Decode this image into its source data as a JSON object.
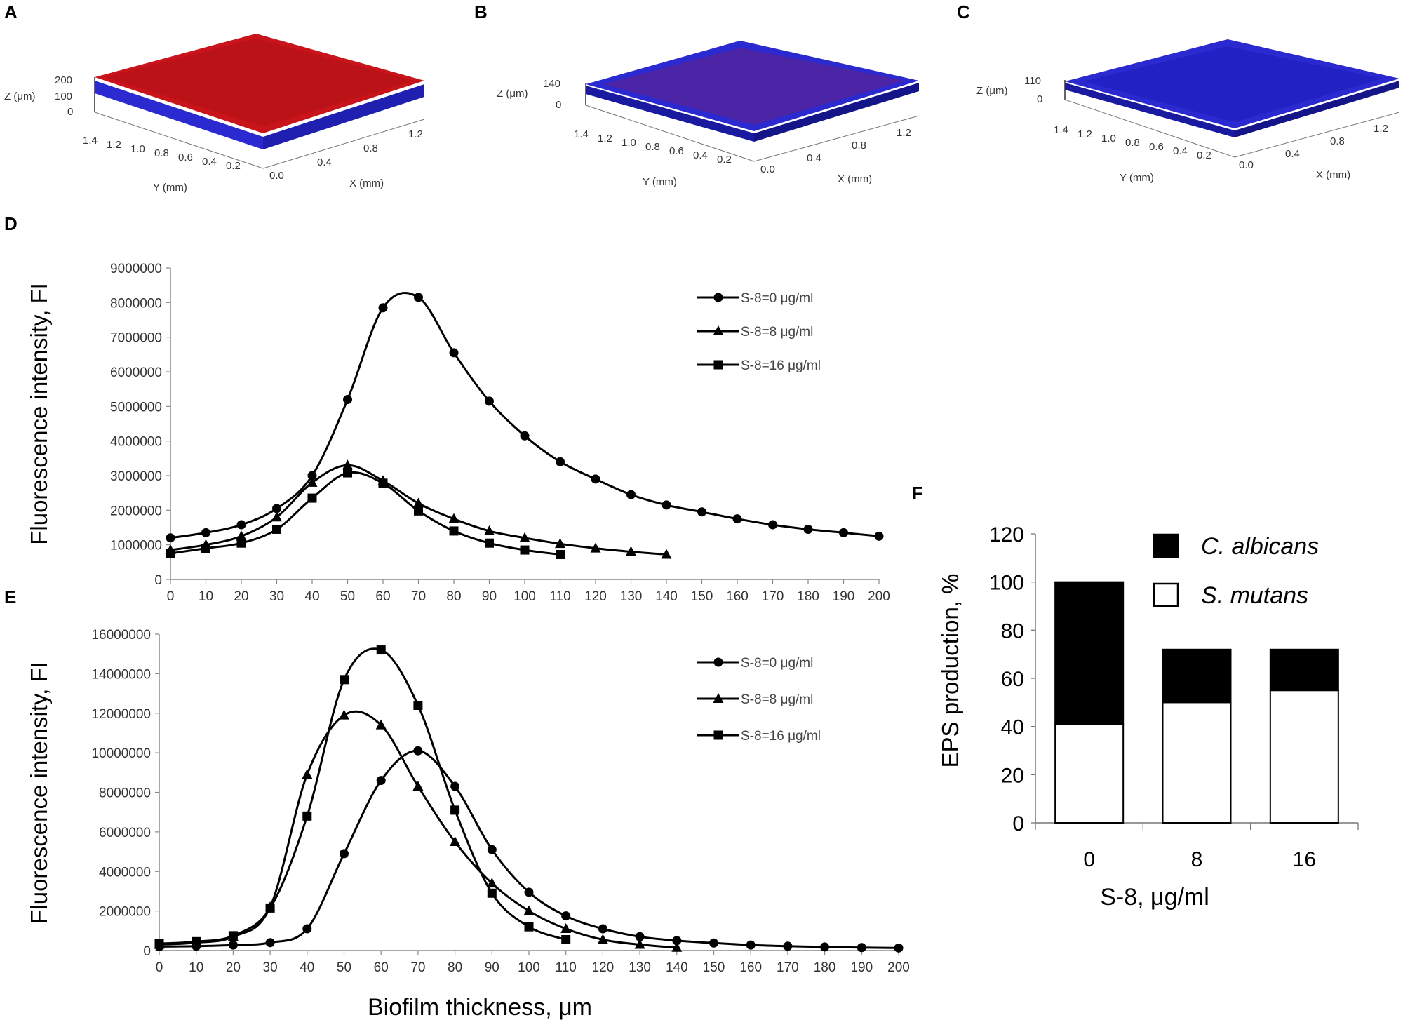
{
  "panels": {
    "A": "A",
    "B": "B",
    "C": "C",
    "D": "D",
    "E": "E",
    "F": "F"
  },
  "images3d": [
    {
      "z_ticks": [
        "200",
        "100",
        "0"
      ],
      "z_label": "Z (μm)",
      "y_ticks": [
        "1.4",
        "1.2",
        "1.0",
        "0.8",
        "0.6",
        "0.4",
        "0.2",
        "0.0"
      ],
      "y_label": "Y (mm)",
      "x_ticks": [
        "0.4",
        "0.8",
        "1.2"
      ],
      "x_label": "X (mm)",
      "color_top": "#c8141a",
      "color_base": "#2a2ad0"
    },
    {
      "z_ticks": [
        "140",
        "0"
      ],
      "z_label": "Z (μm)",
      "y_ticks": [
        "1.4",
        "1.2",
        "1.0",
        "0.8",
        "0.6",
        "0.4",
        "0.2",
        "0.0"
      ],
      "y_label": "Y (mm)",
      "x_ticks": [
        "0.4",
        "0.8",
        "1.2"
      ],
      "x_label": "X (mm)",
      "color_top": "#2a2ad0",
      "color_base": "#1a1aa0"
    },
    {
      "z_ticks": [
        "110",
        "0"
      ],
      "z_label": "Z (μm)",
      "y_ticks": [
        "1.4",
        "1.2",
        "1.0",
        "0.8",
        "0.6",
        "0.4",
        "0.2",
        "0.0"
      ],
      "y_label": "Y (mm)",
      "x_ticks": [
        "0.4",
        "0.8",
        "1.2"
      ],
      "x_label": "X (mm)",
      "color_top": "#2a2ad0",
      "color_base": "#1a1aa0"
    }
  ],
  "chart_data": [
    {
      "id": "D",
      "type": "line",
      "ylabel": "Fluorescence intensity, FI",
      "xlabel": "",
      "ylim": [
        0,
        9000000
      ],
      "yticks": [
        0,
        1000000,
        2000000,
        3000000,
        4000000,
        5000000,
        6000000,
        7000000,
        8000000,
        9000000
      ],
      "xlim": [
        0,
        200
      ],
      "xticks": [
        0,
        10,
        20,
        30,
        40,
        50,
        60,
        70,
        80,
        90,
        100,
        110,
        120,
        130,
        140,
        150,
        160,
        170,
        180,
        190,
        200
      ],
      "series": [
        {
          "name": "S-8=0 μg/ml",
          "marker": "circle",
          "x": [
            0,
            10,
            20,
            30,
            40,
            50,
            60,
            70,
            80,
            90,
            100,
            110,
            120,
            130,
            140,
            150,
            160,
            170,
            180,
            190,
            200
          ],
          "y": [
            1200000,
            1350000,
            1580000,
            2050000,
            3000000,
            5200000,
            7850000,
            8150000,
            6550000,
            5150000,
            4150000,
            3400000,
            2900000,
            2450000,
            2150000,
            1950000,
            1750000,
            1580000,
            1450000,
            1350000,
            1250000
          ]
        },
        {
          "name": "S-8=8 μg/ml",
          "marker": "triangle",
          "x": [
            0,
            10,
            20,
            30,
            40,
            50,
            60,
            70,
            80,
            90,
            100,
            110,
            120,
            130,
            140
          ],
          "y": [
            850000,
            1000000,
            1250000,
            1800000,
            2800000,
            3300000,
            2850000,
            2200000,
            1750000,
            1400000,
            1200000,
            1030000,
            900000,
            800000,
            720000
          ]
        },
        {
          "name": "S-8=16 μg/ml",
          "marker": "square",
          "x": [
            0,
            10,
            20,
            30,
            40,
            50,
            60,
            70,
            80,
            90,
            100,
            110
          ],
          "y": [
            750000,
            900000,
            1050000,
            1450000,
            2350000,
            3080000,
            2780000,
            1980000,
            1400000,
            1050000,
            850000,
            720000
          ]
        }
      ]
    },
    {
      "id": "E",
      "type": "line",
      "ylabel": "Fluorescence intensity, FI",
      "xlabel": "Biofilm thickness, μm",
      "ylim": [
        0,
        16000000
      ],
      "yticks": [
        0,
        2000000,
        4000000,
        6000000,
        8000000,
        10000000,
        12000000,
        14000000,
        16000000
      ],
      "xlim": [
        0,
        200
      ],
      "xticks": [
        0,
        10,
        20,
        30,
        40,
        50,
        60,
        70,
        80,
        90,
        100,
        110,
        120,
        130,
        140,
        150,
        160,
        170,
        180,
        190,
        200
      ],
      "series": [
        {
          "name": "S-8=0 μg/ml",
          "marker": "circle",
          "x": [
            0,
            10,
            20,
            30,
            40,
            50,
            60,
            70,
            80,
            90,
            100,
            110,
            120,
            130,
            140,
            150,
            160,
            170,
            180,
            190,
            200
          ],
          "y": [
            200000,
            220000,
            280000,
            400000,
            1100000,
            4900000,
            8600000,
            10100000,
            8300000,
            5100000,
            2950000,
            1750000,
            1100000,
            700000,
            500000,
            380000,
            280000,
            220000,
            180000,
            150000,
            130000
          ]
        },
        {
          "name": "S-8=8 μg/ml",
          "marker": "triangle",
          "x": [
            0,
            10,
            20,
            30,
            40,
            50,
            60,
            70,
            80,
            90,
            100,
            110,
            120,
            130,
            140
          ],
          "y": [
            300000,
            400000,
            700000,
            2200000,
            8900000,
            11900000,
            11400000,
            8300000,
            5500000,
            3400000,
            2000000,
            1100000,
            550000,
            300000,
            150000
          ]
        },
        {
          "name": "S-8=16 μg/ml",
          "marker": "square",
          "x": [
            0,
            10,
            20,
            30,
            40,
            50,
            60,
            70,
            80,
            90,
            100,
            110
          ],
          "y": [
            350000,
            450000,
            750000,
            2150000,
            6800000,
            13700000,
            15200000,
            12400000,
            7100000,
            2900000,
            1200000,
            550000
          ]
        }
      ]
    },
    {
      "id": "F",
      "type": "bar",
      "stacked": true,
      "ylabel": "EPS production, %",
      "xlabel": "S-8, μg/ml",
      "categories": [
        "0",
        "8",
        "16"
      ],
      "ylim": [
        0,
        120
      ],
      "yticks": [
        0,
        20,
        40,
        60,
        80,
        100,
        120
      ],
      "series": [
        {
          "name": "S. mutans",
          "color": "#ffffff",
          "values": [
            41,
            50,
            55
          ]
        },
        {
          "name": "C. albicans",
          "color": "#000000",
          "values": [
            59,
            22,
            17
          ]
        }
      ]
    }
  ]
}
